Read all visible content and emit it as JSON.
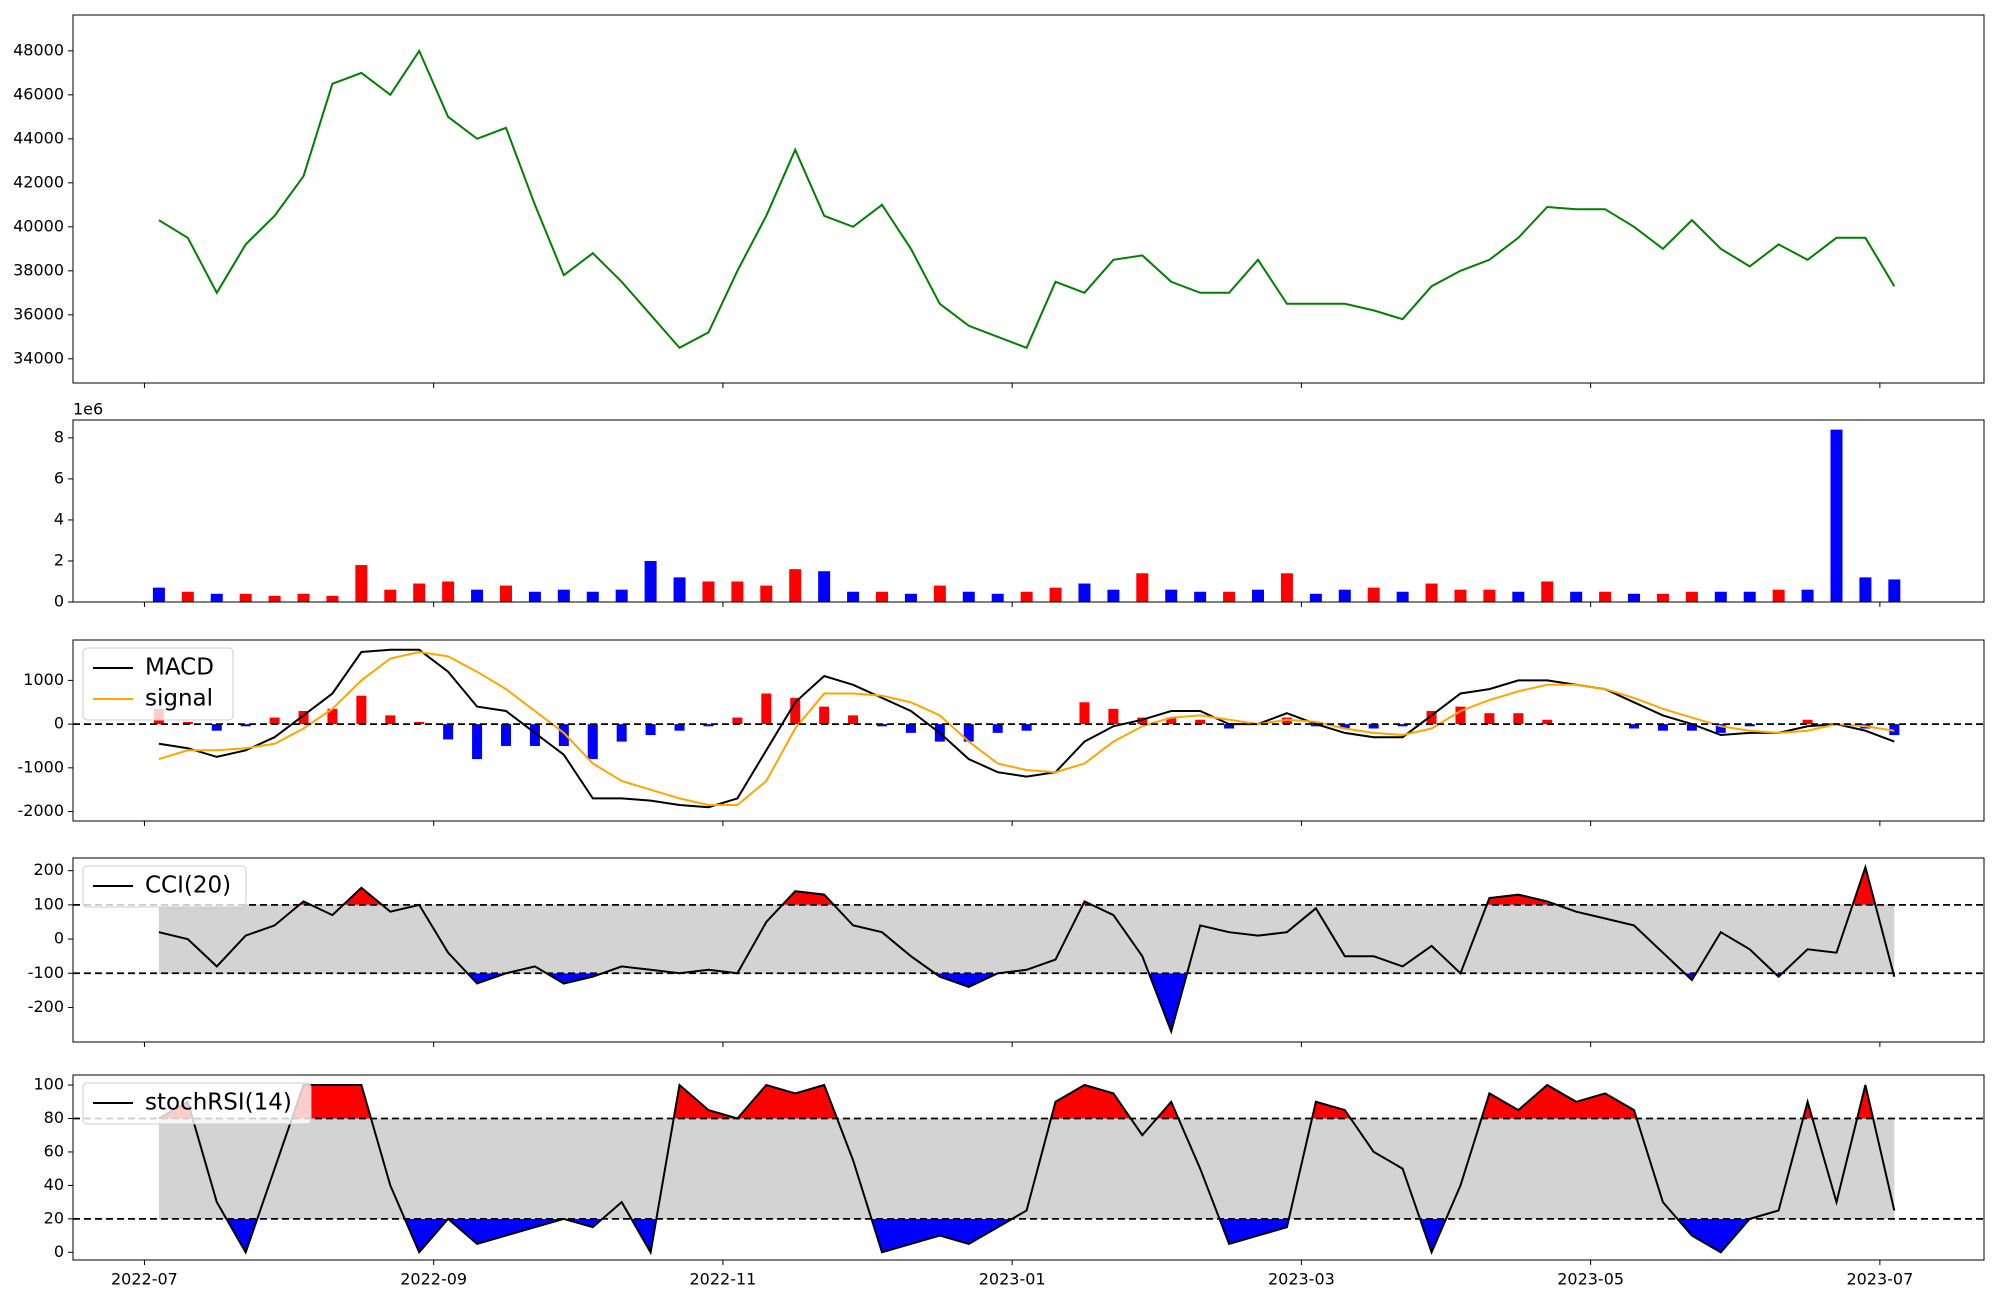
{
  "chart_data": [
    {
      "type": "line",
      "color": "green",
      "x": [
        0.1,
        0.3,
        0.5,
        0.7,
        0.9,
        1.1,
        1.3,
        1.5,
        1.7,
        1.9,
        2.1,
        2.3,
        2.5,
        2.7,
        2.9,
        3.1,
        3.3,
        3.5,
        3.7,
        3.9,
        4.1,
        4.3,
        4.5,
        4.7,
        4.9,
        5.1,
        5.3,
        5.5,
        5.7,
        5.9,
        6.1,
        6.3,
        6.5,
        6.7,
        6.9,
        7.1,
        7.3,
        7.5,
        7.7,
        7.9,
        8.1,
        8.3,
        8.5,
        8.7,
        8.9,
        9.1,
        9.3,
        9.5,
        9.7,
        9.9,
        10.1,
        10.3,
        10.5,
        10.7,
        10.9,
        11.1,
        11.3,
        11.5,
        11.7,
        11.9,
        12.1
      ],
      "values": [
        40300,
        39500,
        37000,
        39200,
        40500,
        42300,
        46500,
        47000,
        46000,
        48000,
        45000,
        44000,
        44500,
        41000,
        37800,
        38800,
        37500,
        36000,
        34500,
        35200,
        38000,
        40500,
        43500,
        40500,
        40000,
        41000,
        39000,
        36500,
        35500,
        35000,
        34500,
        37500,
        37000,
        38500,
        38700,
        37500,
        37000,
        37000,
        38500,
        36500,
        36500,
        36500,
        36200,
        35800,
        37300,
        38000,
        38500,
        39500,
        40900,
        40800,
        40800,
        40000,
        39000,
        40300,
        39000,
        38200,
        39200,
        38500,
        39500,
        39500,
        37300
      ],
      "xlim": [
        -0.494,
        12.72
      ],
      "ylim": [
        32900,
        49630
      ],
      "yticks": [
        34000,
        36000,
        38000,
        40000,
        42000,
        44000,
        46000,
        48000
      ]
    },
    {
      "type": "bar",
      "offset_label": "1e6",
      "x": [
        0.1,
        0.3,
        0.5,
        0.7,
        0.9,
        1.1,
        1.3,
        1.5,
        1.7,
        1.9,
        2.1,
        2.3,
        2.5,
        2.7,
        2.9,
        3.1,
        3.3,
        3.5,
        3.7,
        3.9,
        4.1,
        4.3,
        4.5,
        4.7,
        4.9,
        5.1,
        5.3,
        5.5,
        5.7,
        5.9,
        6.1,
        6.3,
        6.5,
        6.7,
        6.9,
        7.1,
        7.3,
        7.5,
        7.7,
        7.9,
        8.1,
        8.3,
        8.5,
        8.7,
        8.9,
        9.1,
        9.3,
        9.5,
        9.7,
        9.9,
        10.1,
        10.3,
        10.5,
        10.7,
        10.9,
        11.1,
        11.3,
        11.5,
        11.7,
        11.9,
        12.1
      ],
      "values": [
        0.7,
        0.5,
        0.4,
        0.4,
        0.3,
        0.4,
        0.3,
        1.8,
        0.6,
        0.9,
        1.0,
        0.6,
        0.8,
        0.5,
        0.6,
        0.5,
        0.6,
        2.0,
        1.2,
        1.0,
        1.0,
        0.8,
        1.6,
        1.5,
        0.5,
        0.5,
        0.4,
        0.8,
        0.5,
        0.4,
        0.5,
        0.7,
        0.9,
        0.6,
        1.4,
        0.6,
        0.5,
        0.5,
        0.6,
        1.4,
        0.4,
        0.6,
        0.7,
        0.5,
        0.9,
        0.6,
        0.6,
        0.5,
        1.0,
        0.5,
        0.5,
        0.4,
        0.4,
        0.5,
        0.5,
        0.5,
        0.6,
        0.6,
        8.4,
        1.2,
        1.1
      ],
      "colors": [
        "blue",
        "red",
        "blue",
        "red",
        "red",
        "red",
        "red",
        "red",
        "red",
        "red",
        "red",
        "blue",
        "red",
        "blue",
        "blue",
        "blue",
        "blue",
        "blue",
        "blue",
        "red",
        "red",
        "red",
        "red",
        "blue",
        "blue",
        "red",
        "blue",
        "red",
        "blue",
        "blue",
        "red",
        "red",
        "blue",
        "blue",
        "red",
        "blue",
        "blue",
        "red",
        "blue",
        "red",
        "blue",
        "blue",
        "red",
        "blue",
        "red",
        "red",
        "red",
        "blue",
        "red",
        "blue",
        "red",
        "blue",
        "red",
        "red",
        "blue",
        "blue",
        "red",
        "blue",
        "blue",
        "blue",
        "blue"
      ],
      "xlim": [
        -0.494,
        12.72
      ],
      "ylim": [
        0,
        8.87
      ],
      "yticks": [
        0,
        2,
        4,
        6,
        8
      ]
    },
    {
      "type": "macd",
      "legend": "upper left",
      "hline": 0,
      "x": [
        0.1,
        0.3,
        0.5,
        0.7,
        0.9,
        1.1,
        1.3,
        1.5,
        1.7,
        1.9,
        2.1,
        2.3,
        2.5,
        2.7,
        2.9,
        3.1,
        3.3,
        3.5,
        3.7,
        3.9,
        4.1,
        4.3,
        4.5,
        4.7,
        4.9,
        5.1,
        5.3,
        5.5,
        5.7,
        5.9,
        6.1,
        6.3,
        6.5,
        6.7,
        6.9,
        7.1,
        7.3,
        7.5,
        7.7,
        7.9,
        8.1,
        8.3,
        8.5,
        8.7,
        8.9,
        9.1,
        9.3,
        9.5,
        9.7,
        9.9,
        10.1,
        10.3,
        10.5,
        10.7,
        10.9,
        11.1,
        11.3,
        11.5,
        11.7,
        11.9,
        12.1
      ],
      "series": [
        {
          "name": "MACD",
          "color": "black",
          "values": [
            -450,
            -550,
            -750,
            -600,
            -300,
            200,
            700,
            1650,
            1700,
            1700,
            1200,
            400,
            300,
            -200,
            -700,
            -1700,
            -1700,
            -1750,
            -1850,
            -1900,
            -1700,
            -600,
            500,
            1100,
            900,
            600,
            300,
            -200,
            -800,
            -1100,
            -1200,
            -1100,
            -400,
            -50,
            100,
            300,
            300,
            0,
            0,
            250,
            0,
            -200,
            -300,
            -300,
            200,
            700,
            800,
            1000,
            1000,
            900,
            800,
            500,
            200,
            0,
            -250,
            -200,
            -200,
            -50,
            0,
            -150,
            -400
          ]
        },
        {
          "name": "signal",
          "color": "orange",
          "values": [
            -800,
            -600,
            -600,
            -550,
            -450,
            -100,
            350,
            1000,
            1500,
            1650,
            1550,
            1200,
            800,
            300,
            -200,
            -900,
            -1300,
            -1500,
            -1700,
            -1850,
            -1850,
            -1300,
            -100,
            700,
            700,
            650,
            500,
            200,
            -400,
            -900,
            -1050,
            -1100,
            -900,
            -400,
            -50,
            150,
            200,
            100,
            0,
            100,
            50,
            -100,
            -200,
            -250,
            -100,
            300,
            550,
            750,
            900,
            900,
            800,
            600,
            350,
            150,
            -50,
            -150,
            -200,
            -150,
            0,
            -50,
            -150
          ]
        }
      ],
      "histogram": {
        "pos_color": "red",
        "neg_color": "blue",
        "values": [
          350,
          50,
          -150,
          -50,
          150,
          300,
          350,
          650,
          200,
          50,
          -350,
          -800,
          -500,
          -500,
          -500,
          -800,
          -400,
          -250,
          -150,
          -50,
          150,
          700,
          600,
          400,
          200,
          -50,
          -200,
          -400,
          -400,
          -200,
          -150,
          0,
          500,
          350,
          150,
          150,
          100,
          -100,
          0,
          150,
          -50,
          -100,
          -100,
          -50,
          300,
          400,
          250,
          250,
          100,
          0,
          0,
          -100,
          -150,
          -150,
          -200,
          -50,
          0,
          100,
          0,
          -100,
          -250
        ]
      },
      "xlim": [
        -0.494,
        12.72
      ],
      "ylim": [
        -2216,
        1924
      ],
      "yticks": [
        -2000,
        -1000,
        0,
        1000
      ]
    },
    {
      "type": "oscillator",
      "legend": "upper left",
      "upper": 100,
      "lower": -100,
      "band_color": "lightgray",
      "upper_fill": "red",
      "lower_fill": "blue",
      "x": [
        0.1,
        0.3,
        0.5,
        0.7,
        0.9,
        1.1,
        1.3,
        1.5,
        1.7,
        1.9,
        2.1,
        2.3,
        2.5,
        2.7,
        2.9,
        3.1,
        3.3,
        3.5,
        3.7,
        3.9,
        4.1,
        4.3,
        4.5,
        4.7,
        4.9,
        5.1,
        5.3,
        5.5,
        5.7,
        5.9,
        6.1,
        6.3,
        6.5,
        6.7,
        6.9,
        7.1,
        7.3,
        7.5,
        7.7,
        7.9,
        8.1,
        8.3,
        8.5,
        8.7,
        8.9,
        9.1,
        9.3,
        9.5,
        9.7,
        9.9,
        10.1,
        10.3,
        10.5,
        10.7,
        10.9,
        11.1,
        11.3,
        11.5,
        11.7,
        11.9,
        12.1
      ],
      "series": [
        {
          "name": "CCI(20)",
          "color": "black",
          "values": [
            20,
            0,
            -80,
            10,
            40,
            110,
            70,
            150,
            80,
            100,
            -40,
            -130,
            -100,
            -80,
            -130,
            -110,
            -80,
            -90,
            -100,
            -90,
            -100,
            50,
            140,
            130,
            40,
            20,
            -50,
            -110,
            -140,
            -100,
            -90,
            -60,
            110,
            70,
            -50,
            -270,
            40,
            20,
            10,
            20,
            90,
            -50,
            -50,
            -80,
            -20,
            -100,
            120,
            130,
            110,
            80,
            60,
            40,
            -40,
            -120,
            20,
            -30,
            -110,
            -30,
            -40,
            210,
            -110
          ]
        }
      ],
      "xlim": [
        -0.494,
        12.72
      ],
      "ylim": [
        -301,
        237
      ],
      "yticks": [
        -200,
        -100,
        0,
        100,
        200
      ]
    },
    {
      "type": "oscillator",
      "legend": "upper left",
      "upper": 80,
      "lower": 20,
      "band_color": "lightgray",
      "upper_fill": "red",
      "lower_fill": "blue",
      "x": [
        0.1,
        0.3,
        0.5,
        0.7,
        0.9,
        1.1,
        1.3,
        1.5,
        1.7,
        1.9,
        2.1,
        2.3,
        2.5,
        2.7,
        2.9,
        3.1,
        3.3,
        3.5,
        3.7,
        3.9,
        4.1,
        4.3,
        4.5,
        4.7,
        4.9,
        5.1,
        5.3,
        5.5,
        5.7,
        5.9,
        6.1,
        6.3,
        6.5,
        6.7,
        6.9,
        7.1,
        7.3,
        7.5,
        7.7,
        7.9,
        8.1,
        8.3,
        8.5,
        8.7,
        8.9,
        9.1,
        9.3,
        9.5,
        9.7,
        9.9,
        10.1,
        10.3,
        10.5,
        10.7,
        10.9,
        11.1,
        11.3,
        11.5,
        11.7,
        11.9,
        12.1
      ],
      "series": [
        {
          "name": "stochRSI(14)",
          "color": "black",
          "values": [
            80,
            90,
            30,
            0,
            50,
            100,
            100,
            100,
            40,
            0,
            20,
            5,
            10,
            15,
            20,
            15,
            30,
            0,
            100,
            85,
            80,
            100,
            95,
            100,
            55,
            0,
            5,
            10,
            5,
            15,
            25,
            90,
            100,
            95,
            70,
            90,
            50,
            5,
            10,
            15,
            90,
            85,
            60,
            50,
            0,
            40,
            95,
            85,
            100,
            90,
            95,
            85,
            30,
            10,
            0,
            20,
            25,
            90,
            30,
            100,
            25
          ]
        }
      ],
      "xlim": [
        -0.494,
        12.72
      ],
      "ylim": [
        -4.6,
        106
      ],
      "yticks": [
        0,
        20,
        40,
        60,
        80,
        100
      ],
      "xticks": [
        {
          "value": 0,
          "label": "2022-07"
        },
        {
          "value": 2,
          "label": "2022-09"
        },
        {
          "value": 4,
          "label": "2022-11"
        },
        {
          "value": 6,
          "label": "2023-01"
        },
        {
          "value": 8,
          "label": "2023-03"
        },
        {
          "value": 10,
          "label": "2023-05"
        },
        {
          "value": 12,
          "label": "2023-07"
        }
      ]
    }
  ]
}
